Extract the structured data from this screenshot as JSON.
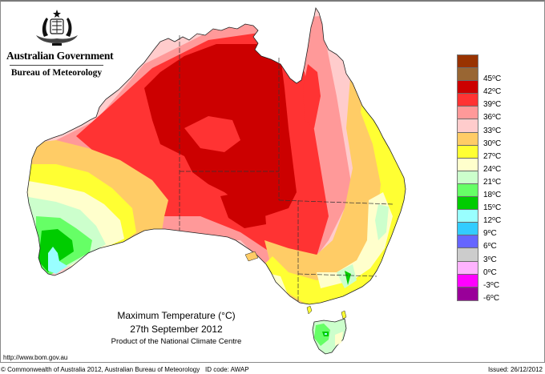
{
  "header": {
    "government": "Australian Government",
    "agency": "Bureau of Meteorology",
    "logo_icon": "coat-of-arms-crest"
  },
  "map": {
    "title": "Maximum Temperature (°C)",
    "date": "27th September 2012",
    "product": "Product of the National Climate Centre",
    "region": "Australia"
  },
  "legend": {
    "unit": "°C",
    "bins": [
      {
        "label": "",
        "color": "#993300"
      },
      {
        "label": "45°C",
        "color": "#996633"
      },
      {
        "label": "42°C",
        "color": "#cc0000"
      },
      {
        "label": "39°C",
        "color": "#ff3333"
      },
      {
        "label": "36°C",
        "color": "#ff9999"
      },
      {
        "label": "33°C",
        "color": "#ffcccc"
      },
      {
        "label": "30°C",
        "color": "#ffcc66"
      },
      {
        "label": "27°C",
        "color": "#ffff33"
      },
      {
        "label": "24°C",
        "color": "#ffffcc"
      },
      {
        "label": "21°C",
        "color": "#ccffcc"
      },
      {
        "label": "18°C",
        "color": "#66ff66"
      },
      {
        "label": "15°C",
        "color": "#00cc00"
      },
      {
        "label": "12°C",
        "color": "#99ffff"
      },
      {
        "label": "9°C",
        "color": "#33ccff"
      },
      {
        "label": "6°C",
        "color": "#6666ff"
      },
      {
        "label": "3°C",
        "color": "#cccccc"
      },
      {
        "label": "0°C",
        "color": "#ffb3ff"
      },
      {
        "label": "-3°C",
        "color": "#ff00ff"
      },
      {
        "label": "-6°C",
        "color": "#990099"
      }
    ]
  },
  "footer": {
    "url": "http://www.bom.gov.au",
    "copyright": "© Commonwealth of Australia 2012, Australian Bureau of Meteorology",
    "id_code": "ID code: AWAP",
    "issued": "Issued: 26/12/2012"
  }
}
